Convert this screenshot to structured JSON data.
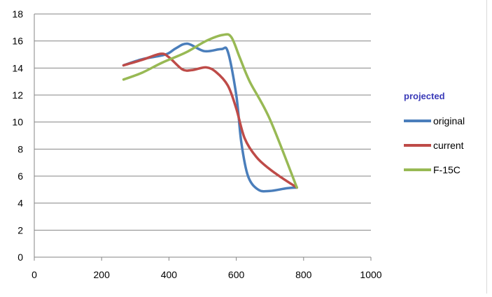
{
  "chart_data": {
    "type": "line",
    "xlim": [
      0,
      1000
    ],
    "ylim": [
      0,
      18
    ],
    "xticks": [
      0,
      200,
      400,
      600,
      800,
      1000
    ],
    "yticks": [
      0,
      2,
      4,
      6,
      8,
      10,
      12,
      14,
      16,
      18
    ],
    "grid": "horizontal",
    "legend_title": "projected",
    "legend_title_color": "#3a3ab8",
    "legend_position": "right",
    "series": [
      {
        "name": "original",
        "color": "#4a7ebb",
        "points": [
          [
            265,
            14.2
          ],
          [
            320,
            14.65
          ],
          [
            390,
            15.0
          ],
          [
            420,
            15.45
          ],
          [
            455,
            15.8
          ],
          [
            505,
            15.25
          ],
          [
            555,
            15.4
          ],
          [
            575,
            15.2
          ],
          [
            600,
            12.0
          ],
          [
            615,
            8.5
          ],
          [
            635,
            6.0
          ],
          [
            665,
            5.0
          ],
          [
            700,
            4.9
          ],
          [
            750,
            5.1
          ],
          [
            780,
            5.15
          ]
        ]
      },
      {
        "name": "current",
        "color": "#be4b48",
        "points": [
          [
            265,
            14.2
          ],
          [
            320,
            14.6
          ],
          [
            375,
            15.05
          ],
          [
            400,
            14.8
          ],
          [
            440,
            13.9
          ],
          [
            470,
            13.85
          ],
          [
            510,
            14.05
          ],
          [
            540,
            13.7
          ],
          [
            575,
            12.7
          ],
          [
            600,
            11.0
          ],
          [
            625,
            8.8
          ],
          [
            660,
            7.4
          ],
          [
            700,
            6.5
          ],
          [
            740,
            5.8
          ],
          [
            780,
            5.15
          ]
        ]
      },
      {
        "name": "F-15C",
        "color": "#98b954",
        "points": [
          [
            265,
            13.15
          ],
          [
            320,
            13.65
          ],
          [
            380,
            14.4
          ],
          [
            450,
            15.15
          ],
          [
            510,
            16.0
          ],
          [
            560,
            16.45
          ],
          [
            585,
            16.3
          ],
          [
            610,
            14.8
          ],
          [
            640,
            13.0
          ],
          [
            700,
            10.2
          ],
          [
            780,
            5.15
          ]
        ]
      }
    ]
  }
}
